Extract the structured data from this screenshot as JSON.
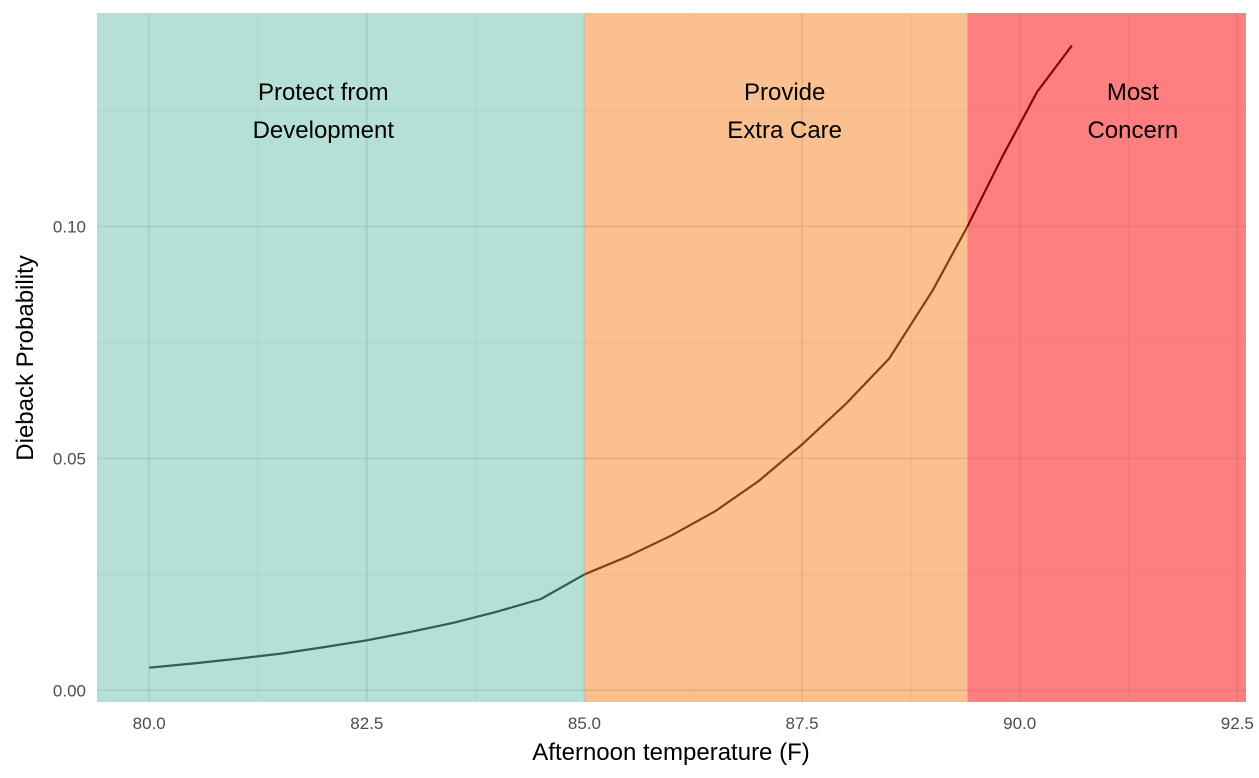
{
  "chart_data": {
    "type": "area",
    "xlabel": "Afternoon temperature (F)",
    "ylabel": "Dieback Probability",
    "xlim": [
      79.4,
      92.6
    ],
    "ylim": [
      -0.0025,
      0.146
    ],
    "x_ticks": [
      "80.0",
      "82.5",
      "85.0",
      "87.5",
      "90.0",
      "92.5"
    ],
    "y_ticks": [
      "0.00",
      "0.05",
      "0.10"
    ],
    "grid": true,
    "zones": [
      {
        "from": 79.4,
        "to": 85.0,
        "color": "#b5e0d6",
        "label_lines": [
          "Protect from",
          "Development"
        ],
        "label_x": 82.0,
        "line_color": "#2f5f52"
      },
      {
        "from": 85.0,
        "to": 89.4,
        "color": "#fbc08f",
        "label_lines": [
          "Provide",
          "Extra Care"
        ],
        "label_x": 87.3,
        "line_color": "#8a3e0f"
      },
      {
        "from": 89.4,
        "to": 92.6,
        "color": "#ff7f80",
        "label_lines": [
          "Most",
          "Concern"
        ],
        "label_x": 91.3,
        "line_color": "#8b0000"
      }
    ],
    "series": [
      {
        "x": [
          80.0,
          80.5,
          81.0,
          81.5,
          82.0,
          82.5,
          83.0,
          83.5,
          84.0,
          84.5,
          85.0,
          85.5,
          86.0,
          86.5,
          87.0,
          87.5,
          88.0,
          88.5,
          89.0,
          89.4,
          89.8,
          90.2,
          90.6
        ],
        "values": [
          0.0049,
          0.0058,
          0.0068,
          0.0079,
          0.0093,
          0.0108,
          0.0126,
          0.0146,
          0.017,
          0.0197,
          0.025,
          0.0289,
          0.0334,
          0.0386,
          0.0451,
          0.053,
          0.0617,
          0.0715,
          0.0862,
          0.1,
          0.115,
          0.129,
          0.139
        ]
      }
    ]
  }
}
